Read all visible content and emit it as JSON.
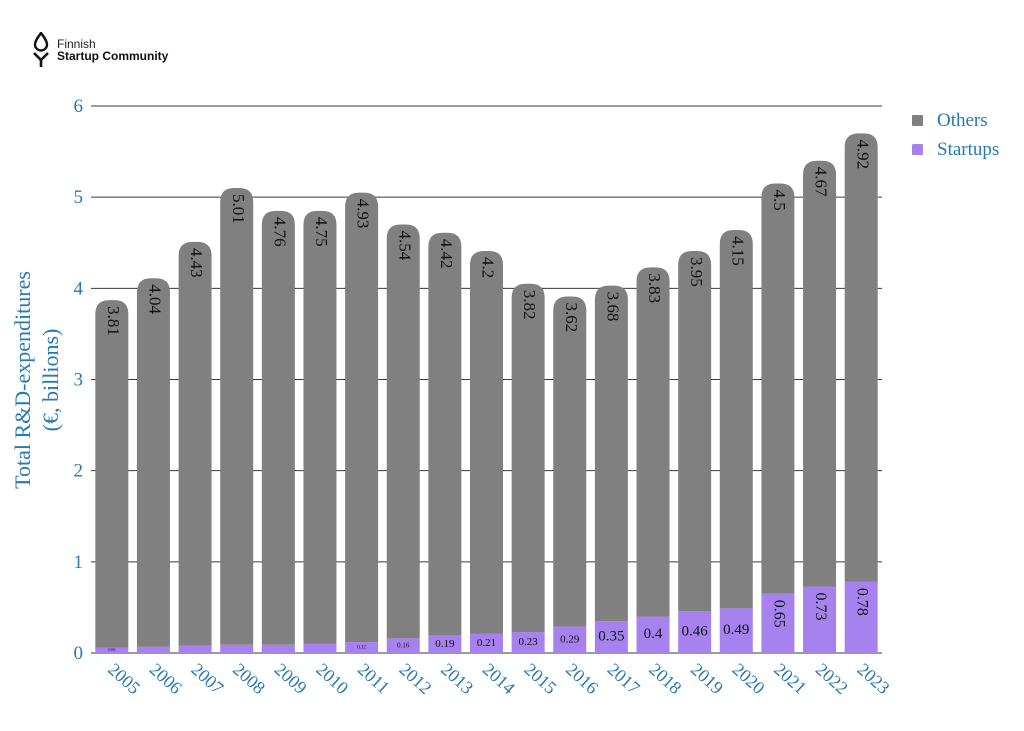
{
  "brand": {
    "line1": "Finnish",
    "line2": "Startup Community"
  },
  "legend": [
    {
      "label": "Others",
      "color": "#808080"
    },
    {
      "label": "Startups",
      "color": "#a682ee"
    }
  ],
  "chart_data": {
    "type": "bar",
    "stacked": true,
    "title": "",
    "xlabel": "",
    "ylabel": "Total R&D-expenditures (€, billions)",
    "ylabel_lines": [
      "Total R&D-expenditures",
      "(€, billions)"
    ],
    "ylim": [
      0,
      6
    ],
    "yticks": [
      "0",
      "1",
      "2",
      "3",
      "4",
      "5",
      "6"
    ],
    "grid": true,
    "legend_position": "right",
    "categories": [
      "2005",
      "2006",
      "2007",
      "2008",
      "2009",
      "2010",
      "2011",
      "2012",
      "2013",
      "2014",
      "2015",
      "2016",
      "2017",
      "2018",
      "2019",
      "2020",
      "2021",
      "2022",
      "2023"
    ],
    "series": [
      {
        "name": "Startups",
        "color": "#a682ee",
        "values": [
          0.06,
          0.07,
          0.08,
          0.09,
          0.09,
          0.1,
          0.12,
          0.16,
          0.19,
          0.21,
          0.23,
          0.29,
          0.35,
          0.4,
          0.46,
          0.49,
          0.65,
          0.73,
          0.78
        ],
        "labels": [
          "0.06",
          "",
          "",
          "",
          "",
          "",
          "0.12",
          "0.16",
          "0.19",
          "0.21",
          "0.23",
          "0.29",
          "0.35",
          "0.4",
          "0.46",
          "0.49",
          "0.65",
          "0.73",
          "0.78"
        ]
      },
      {
        "name": "Others",
        "color": "#808080",
        "values": [
          3.81,
          4.04,
          4.43,
          5.01,
          4.76,
          4.75,
          4.93,
          4.54,
          4.42,
          4.2,
          3.82,
          3.62,
          3.68,
          3.83,
          3.95,
          4.15,
          4.5,
          4.67,
          4.92
        ],
        "labels": [
          "3.81",
          "4.04",
          "4.43",
          "5.01",
          "4.76",
          "4.75",
          "4.93",
          "4.54",
          "4.42",
          "4.2",
          "3.82",
          "3.62",
          "3.68",
          "3.83",
          "3.95",
          "4.15",
          "4.5",
          "4.67",
          "4.92"
        ]
      }
    ]
  }
}
